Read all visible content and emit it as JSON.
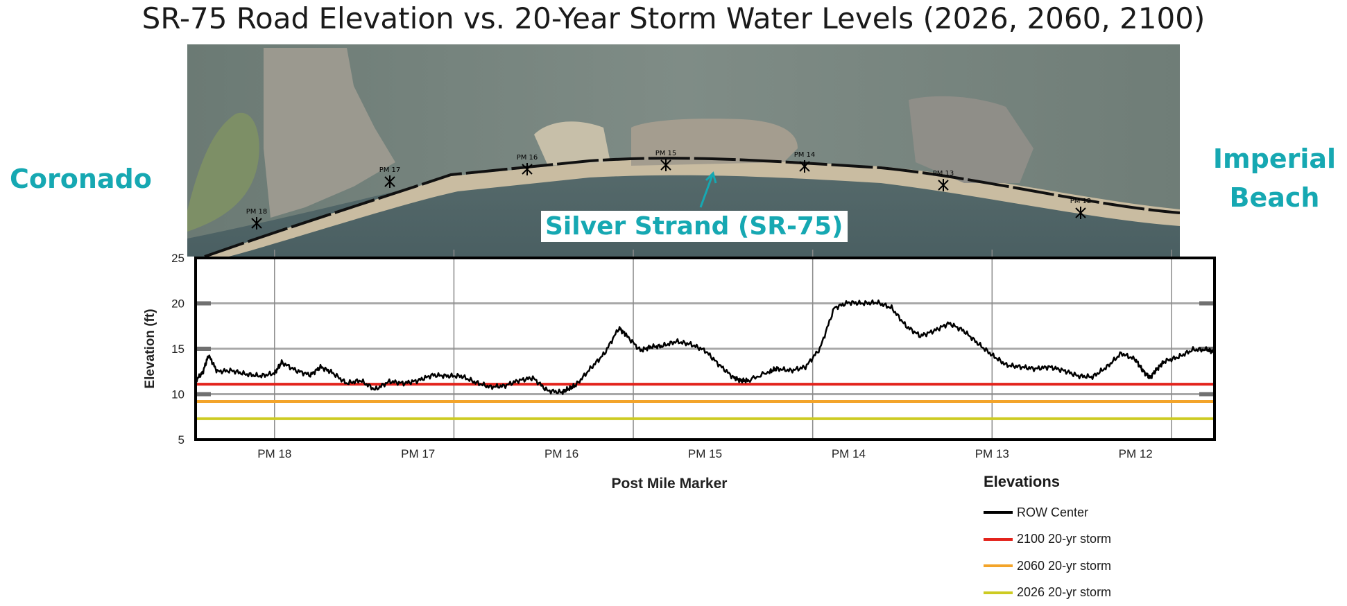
{
  "title": "SR-75 Road Elevation vs. 20-Year Storm Water Levels (2026, 2060, 2100)",
  "places": {
    "left": "Coronado",
    "right": "Imperial Beach"
  },
  "callout": "Silver Strand (SR-75)",
  "map_markers": [
    "PM 18",
    "PM 17",
    "PM 16",
    "PM 15",
    "PM 14",
    "PM 13",
    "PM 12"
  ],
  "chart_data": {
    "type": "line",
    "title": "",
    "xlabel": "Post Mile Marker",
    "ylabel": "Elevation (ft)",
    "ylim": [
      5,
      25
    ],
    "yticks": [
      5,
      10,
      15,
      20,
      25
    ],
    "xlim": [
      18.55,
      11.45
    ],
    "xticks": [
      {
        "value": 18,
        "label": "PM 18"
      },
      {
        "value": 17,
        "label": "PM 17"
      },
      {
        "value": 16,
        "label": "PM 16"
      },
      {
        "value": 15,
        "label": "PM 15"
      },
      {
        "value": 14,
        "label": "PM 14"
      },
      {
        "value": 13,
        "label": "PM 13"
      },
      {
        "value": 12,
        "label": "PM 12"
      }
    ],
    "vertical_gridlines": [
      18,
      16.75,
      15.5,
      14.25,
      13,
      11.75
    ],
    "grid": true,
    "legend_title": "Elevations",
    "legend_position": "bottom-right",
    "series": [
      {
        "name": "ROW Center",
        "color": "#000000",
        "x": [
          18.55,
          18.5,
          18.46,
          18.4,
          18.3,
          18.2,
          18.1,
          18.0,
          17.95,
          17.85,
          17.75,
          17.68,
          17.6,
          17.5,
          17.4,
          17.3,
          17.2,
          17.1,
          17.0,
          16.9,
          16.8,
          16.7,
          16.6,
          16.5,
          16.4,
          16.3,
          16.2,
          16.1,
          16.0,
          15.95,
          15.9,
          15.8,
          15.7,
          15.6,
          15.55,
          15.45,
          15.38,
          15.3,
          15.2,
          15.1,
          15.0,
          14.9,
          14.8,
          14.75,
          14.7,
          14.55,
          14.5,
          14.4,
          14.3,
          14.2,
          14.1,
          14.0,
          13.9,
          13.8,
          13.7,
          13.6,
          13.5,
          13.4,
          13.3,
          13.2,
          13.1,
          13.0,
          12.9,
          12.8,
          12.7,
          12.6,
          12.5,
          12.4,
          12.3,
          12.2,
          12.1,
          12.0,
          11.95,
          11.9,
          11.85,
          11.8,
          11.7,
          11.6,
          11.5,
          11.45
        ],
        "y": [
          11.5,
          12.4,
          14.3,
          12.5,
          12.6,
          12.2,
          12.0,
          12.3,
          13.5,
          12.6,
          12.1,
          13.0,
          12.4,
          11.2,
          11.5,
          10.5,
          11.4,
          11.2,
          11.5,
          12.1,
          12.0,
          12.0,
          11.3,
          10.8,
          10.9,
          11.5,
          11.8,
          10.4,
          10.2,
          10.6,
          11.0,
          12.8,
          14.5,
          17.3,
          16.5,
          14.8,
          15.2,
          15.3,
          15.8,
          15.5,
          14.8,
          13.2,
          11.8,
          11.5,
          11.5,
          12.5,
          12.8,
          12.6,
          13.0,
          15.0,
          19.5,
          20.1,
          20.0,
          20.1,
          19.5,
          17.5,
          16.4,
          17.0,
          17.8,
          17.0,
          15.6,
          14.3,
          13.2,
          13.0,
          12.8,
          13.0,
          12.6,
          12.0,
          11.9,
          13.0,
          14.5,
          13.8,
          12.6,
          11.8,
          12.8,
          13.6,
          14.1,
          14.9,
          14.9,
          14.6
        ]
      },
      {
        "name": "2100 20-yr storm",
        "color": "#e3231c",
        "constant": 11.1
      },
      {
        "name": "2060 20-yr storm",
        "color": "#f3a42a",
        "constant": 9.2
      },
      {
        "name": "2026 20-yr storm",
        "color": "#cdcb22",
        "constant": 7.3
      }
    ]
  }
}
